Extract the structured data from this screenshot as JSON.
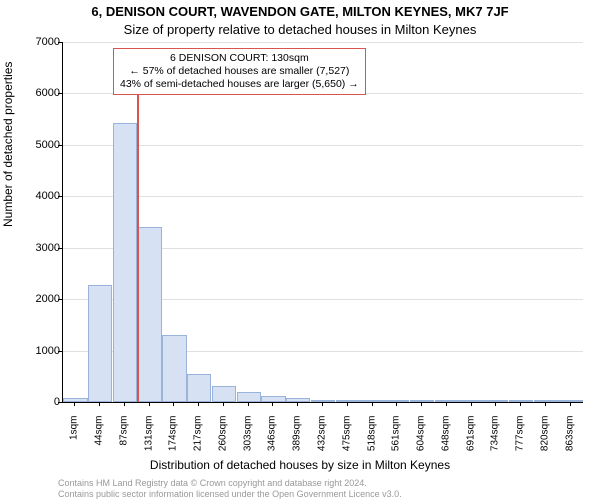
{
  "chart": {
    "type": "histogram",
    "title_line1": "6, DENISON COURT, WAVENDON GATE, MILTON KEYNES, MK7 7JF",
    "title_line2": "Size of property relative to detached houses in Milton Keynes",
    "title_fontsize": 13,
    "y_axis_label": "Number of detached properties",
    "x_axis_label": "Distribution of detached houses by size in Milton Keynes",
    "axis_label_fontsize": 12,
    "tick_fontsize": 11,
    "x_tick_fontsize": 10,
    "background_color": "#ffffff",
    "grid_color": "#e0e0e0",
    "axis_color": "#000000",
    "bar_fill_color": "#d6e2f3",
    "bar_border_color": "#9ab3db",
    "marker_color": "#d9534f",
    "ylim": [
      0,
      7000
    ],
    "ytick_step": 1000,
    "y_ticks": [
      0,
      1000,
      2000,
      3000,
      4000,
      5000,
      6000,
      7000
    ],
    "x_tick_labels": [
      "1sqm",
      "44sqm",
      "87sqm",
      "131sqm",
      "174sqm",
      "217sqm",
      "260sqm",
      "303sqm",
      "346sqm",
      "389sqm",
      "432sqm",
      "475sqm",
      "518sqm",
      "561sqm",
      "604sqm",
      "648sqm",
      "691sqm",
      "734sqm",
      "777sqm",
      "820sqm",
      "863sqm"
    ],
    "bars": [
      80,
      2280,
      5420,
      3400,
      1310,
      540,
      310,
      190,
      110,
      80,
      40,
      25,
      20,
      15,
      12,
      10,
      8,
      6,
      5,
      4,
      3
    ],
    "bar_width_ratio": 0.98,
    "marker_value": 130,
    "marker_bar_index": 3,
    "annotation": {
      "line1": "6 DENISON COURT: 130sqm",
      "line2": "← 57% of detached houses are smaller (7,527)",
      "line3": "43% of semi-detached houses are larger (5,650) →",
      "border_color": "#d9534f",
      "fontsize": 10.5
    },
    "footer_line1": "Contains HM Land Registry data © Crown copyright and database right 2024.",
    "footer_line2": "Contains public sector information licensed under the Open Government Licence v3.0.",
    "footer_color": "#999999",
    "footer_fontsize": 9
  }
}
